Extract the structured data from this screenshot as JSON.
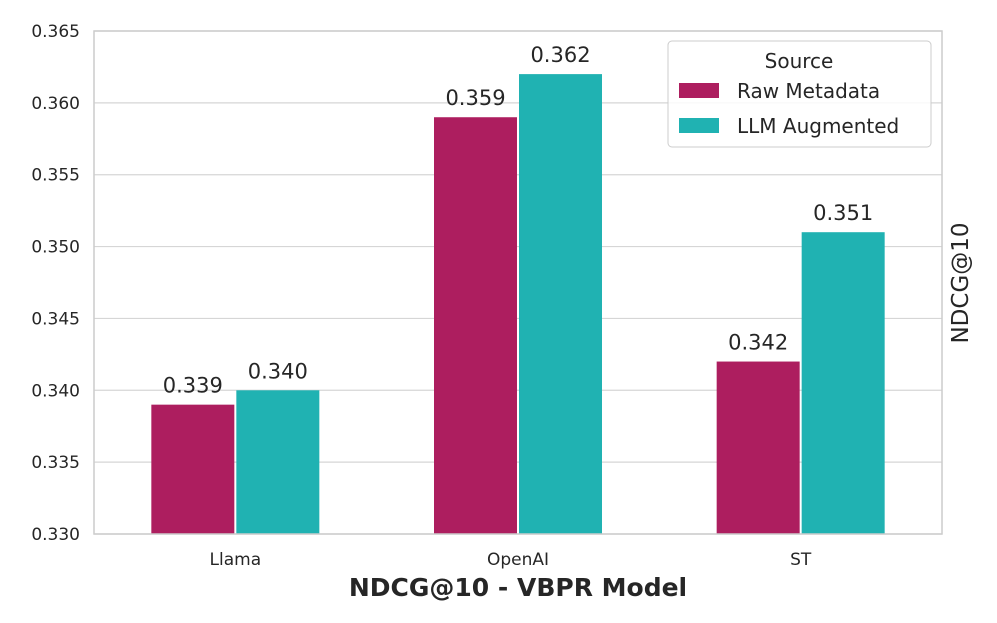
{
  "chart_data": {
    "type": "bar",
    "title": "",
    "xlabel": "NDCG@10 - VBPR Model",
    "ylabel": "NDCG@10",
    "categories": [
      "Llama",
      "OpenAI",
      "ST"
    ],
    "series": [
      {
        "name": "Raw Metadata",
        "color": "#ad1e5f",
        "values": [
          0.339,
          0.359,
          0.342
        ],
        "labels": [
          "0.339",
          "0.359",
          "0.342"
        ]
      },
      {
        "name": "LLM Augmented",
        "color": "#20b2b2",
        "values": [
          0.34,
          0.362,
          0.351
        ],
        "labels": [
          "0.340",
          "0.362",
          "0.351"
        ]
      }
    ],
    "ylim": [
      0.33,
      0.365
    ],
    "yticks": [
      "0.330",
      "0.335",
      "0.340",
      "0.345",
      "0.350",
      "0.355",
      "0.360",
      "0.365"
    ],
    "grid": true,
    "legend": {
      "title": "Source",
      "position": "top-right"
    }
  }
}
